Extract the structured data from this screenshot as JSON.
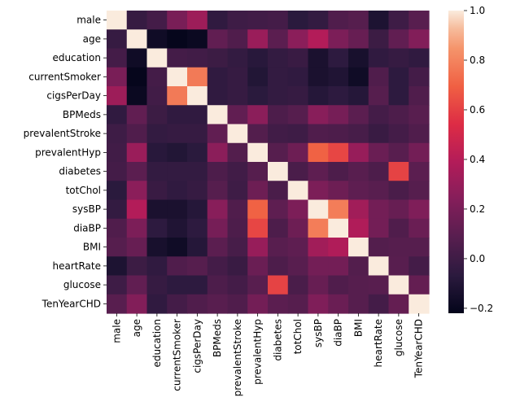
{
  "chart_data": {
    "type": "heatmap",
    "title": "",
    "xlabel": "",
    "ylabel": "",
    "variables": [
      "male",
      "age",
      "education",
      "currentSmoker",
      "cigsPerDay",
      "BPMeds",
      "prevalentStroke",
      "prevalentHyp",
      "diabetes",
      "totChol",
      "sysBP",
      "diaBP",
      "BMI",
      "heartRate",
      "glucose",
      "TenYearCHD"
    ],
    "values": [
      [
        1.0,
        -0.03,
        0.02,
        0.2,
        0.32,
        -0.05,
        -0.0,
        0.01,
        0.02,
        -0.07,
        -0.04,
        0.06,
        0.08,
        -0.12,
        0.0,
        0.09
      ],
      [
        -0.03,
        1.0,
        -0.17,
        -0.21,
        -0.19,
        0.12,
        0.06,
        0.31,
        0.1,
        0.26,
        0.39,
        0.21,
        0.14,
        -0.01,
        0.12,
        0.23
      ],
      [
        0.02,
        -0.17,
        1.0,
        0.02,
        0.01,
        -0.01,
        -0.04,
        -0.08,
        -0.04,
        -0.02,
        -0.13,
        -0.06,
        -0.14,
        -0.05,
        -0.03,
        -0.05
      ],
      [
        0.2,
        -0.21,
        0.02,
        1.0,
        0.77,
        -0.05,
        -0.03,
        -0.1,
        -0.04,
        -0.05,
        -0.13,
        -0.11,
        -0.17,
        0.06,
        -0.06,
        0.02
      ],
      [
        0.32,
        -0.19,
        0.01,
        0.77,
        1.0,
        -0.05,
        -0.03,
        -0.07,
        -0.04,
        -0.03,
        -0.09,
        -0.06,
        -0.09,
        0.08,
        -0.06,
        0.06
      ],
      [
        -0.05,
        0.12,
        -0.01,
        -0.05,
        -0.05,
        1.0,
        0.12,
        0.26,
        0.05,
        0.08,
        0.25,
        0.19,
        0.1,
        0.02,
        0.05,
        0.09
      ],
      [
        -0.0,
        0.06,
        -0.04,
        -0.03,
        -0.03,
        0.12,
        1.0,
        0.07,
        0.01,
        0.0,
        0.06,
        0.05,
        0.03,
        -0.02,
        0.02,
        0.06
      ],
      [
        0.01,
        0.31,
        -0.08,
        -0.1,
        -0.07,
        0.26,
        0.07,
        1.0,
        0.08,
        0.16,
        0.7,
        0.62,
        0.3,
        0.15,
        0.09,
        0.18
      ],
      [
        0.02,
        0.1,
        -0.04,
        -0.04,
        -0.04,
        0.05,
        0.01,
        0.08,
        1.0,
        0.04,
        0.11,
        0.05,
        0.09,
        0.05,
        0.61,
        0.1
      ],
      [
        -0.07,
        0.26,
        -0.02,
        -0.05,
        -0.03,
        0.08,
        0.0,
        0.16,
        0.04,
        1.0,
        0.21,
        0.16,
        0.11,
        0.09,
        0.04,
        0.08
      ],
      [
        -0.04,
        0.39,
        -0.13,
        -0.13,
        -0.09,
        0.25,
        0.06,
        0.7,
        0.11,
        0.21,
        1.0,
        0.78,
        0.33,
        0.18,
        0.14,
        0.22
      ],
      [
        0.06,
        0.21,
        -0.06,
        -0.11,
        -0.06,
        0.19,
        0.05,
        0.62,
        0.05,
        0.16,
        0.78,
        1.0,
        0.38,
        0.18,
        0.06,
        0.15
      ],
      [
        0.08,
        0.14,
        -0.14,
        -0.17,
        -0.09,
        0.1,
        0.03,
        0.3,
        0.09,
        0.11,
        0.33,
        0.38,
        1.0,
        0.07,
        0.08,
        0.08
      ],
      [
        -0.12,
        -0.01,
        -0.05,
        0.06,
        0.08,
        0.02,
        -0.02,
        0.15,
        0.05,
        0.09,
        0.18,
        0.18,
        0.07,
        1.0,
        0.09,
        0.02
      ],
      [
        0.0,
        0.12,
        -0.03,
        -0.06,
        -0.06,
        0.05,
        0.02,
        0.09,
        0.61,
        0.04,
        0.14,
        0.06,
        0.08,
        0.09,
        1.0,
        0.13
      ],
      [
        0.09,
        0.23,
        -0.05,
        0.02,
        0.06,
        0.09,
        0.06,
        0.18,
        0.1,
        0.08,
        0.22,
        0.15,
        0.08,
        0.02,
        0.13,
        1.0
      ]
    ],
    "colorbar": {
      "min": -0.22,
      "max": 1.0,
      "ticks": [
        -0.2,
        0.0,
        0.2,
        0.4,
        0.6,
        0.8,
        1.0
      ],
      "tick_labels": [
        "−0.2",
        "0.0",
        "0.2",
        "0.4",
        "0.6",
        "0.8",
        "1.0"
      ],
      "colormap": "rocket",
      "colormap_stops": [
        [
          0.0,
          "#03051a"
        ],
        [
          0.125,
          "#2b1a3e"
        ],
        [
          0.25,
          "#571e4f"
        ],
        [
          0.375,
          "#841e5a"
        ],
        [
          0.5,
          "#b31c59"
        ],
        [
          0.625,
          "#dd2c45"
        ],
        [
          0.75,
          "#f06043"
        ],
        [
          0.875,
          "#f5946b"
        ],
        [
          0.94,
          "#f6bb9b"
        ],
        [
          1.0,
          "#faebdd"
        ]
      ]
    },
    "grid": false,
    "legend": "colorbar-right"
  }
}
